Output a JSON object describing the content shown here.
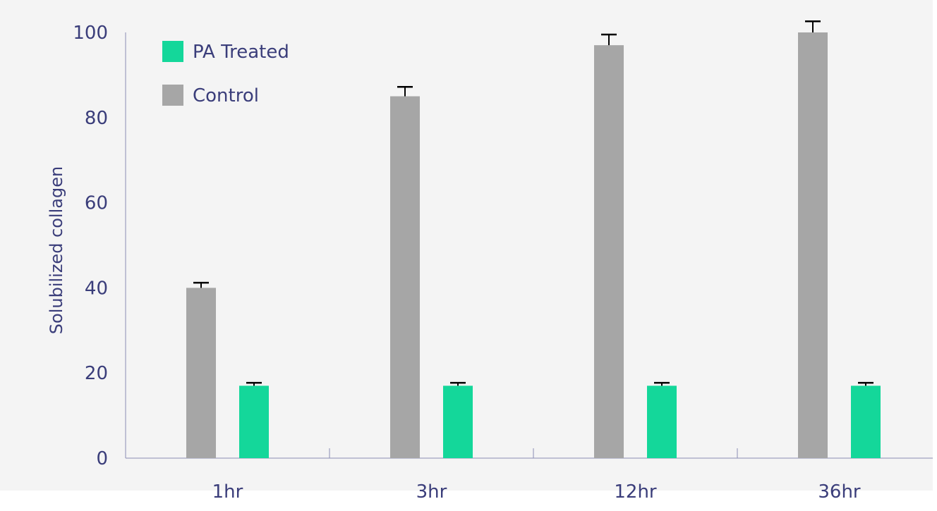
{
  "chart_data": {
    "type": "bar",
    "categories": [
      "1hr",
      "3hr",
      "12hr",
      "36hr"
    ],
    "series": [
      {
        "name": "Control",
        "color": "#a6a6a6",
        "values": [
          40,
          85,
          97,
          100
        ],
        "errors": [
          1.2,
          2.2,
          2.5,
          2.6
        ]
      },
      {
        "name": "PA Treated",
        "color": "#14d79a",
        "values": [
          17,
          17,
          17,
          17
        ],
        "errors": [
          0.7,
          0.7,
          0.7,
          0.7
        ]
      }
    ],
    "legend": [
      {
        "name": "PA Treated",
        "color": "#14d79a"
      },
      {
        "name": "Control",
        "color": "#a6a6a6"
      }
    ],
    "legend_position": "top-left",
    "title": "",
    "xlabel": "",
    "ylabel": "Solubilized collagen",
    "ylim": [
      0,
      100
    ],
    "yticks": [
      0,
      20,
      40,
      60,
      80,
      100
    ],
    "grid": false,
    "axis_color": "#3a3d7a",
    "error_bar_color": "#000000"
  }
}
